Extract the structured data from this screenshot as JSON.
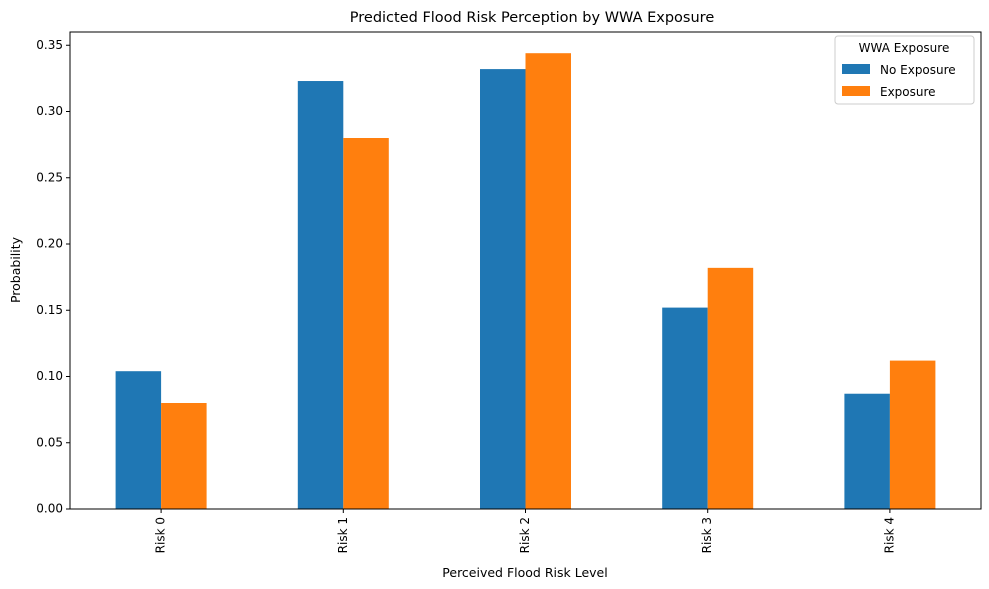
{
  "chart_data": {
    "type": "bar",
    "title": "Predicted Flood Risk Perception by WWA Exposure",
    "xlabel": "Perceived Flood Risk Level",
    "ylabel": "Probability",
    "categories": [
      "Risk 0",
      "Risk 1",
      "Risk 2",
      "Risk 3",
      "Risk 4"
    ],
    "series": [
      {
        "name": "No Exposure",
        "color": "#1f77b4",
        "values": [
          0.104,
          0.323,
          0.332,
          0.152,
          0.087
        ]
      },
      {
        "name": "Exposure",
        "color": "#ff7f0e",
        "values": [
          0.08,
          0.28,
          0.344,
          0.182,
          0.112
        ]
      }
    ],
    "ylim": [
      0,
      0.36
    ],
    "yticks": [
      0.0,
      0.05,
      0.1,
      0.15,
      0.2,
      0.25,
      0.3,
      0.35
    ],
    "ytick_labels": [
      "0.00",
      "0.05",
      "0.10",
      "0.15",
      "0.20",
      "0.25",
      "0.30",
      "0.35"
    ],
    "grid": false,
    "legend": {
      "title": "WWA Exposure",
      "placement": "top-right"
    }
  }
}
